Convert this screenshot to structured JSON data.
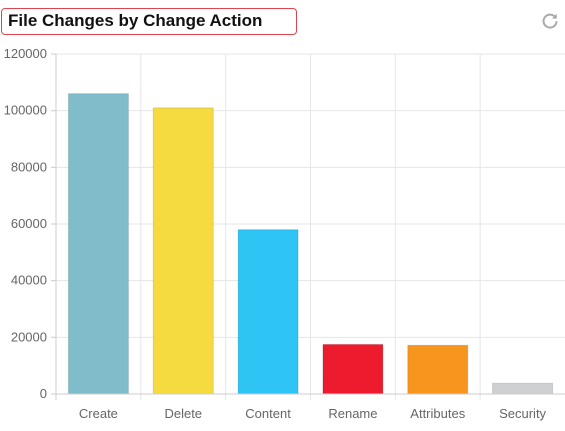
{
  "header": {
    "title": "File Changes by Change Action"
  },
  "icons": {
    "refresh": "refresh-icon"
  },
  "chart_data": {
    "type": "bar",
    "title": "File Changes by Change Action",
    "xlabel": "",
    "ylabel": "",
    "categories": [
      "Create",
      "Delete",
      "Content",
      "Rename",
      "Attributes",
      "Security"
    ],
    "values": [
      106000,
      101000,
      58000,
      17500,
      17200,
      3800
    ],
    "colors": [
      "#7fbdca",
      "#f5da40",
      "#2ec4f4",
      "#ec1c2e",
      "#f7961e",
      "#cfd0d2"
    ],
    "ylim": [
      0,
      120000
    ],
    "yticks": [
      "0",
      "20000",
      "40000",
      "60000",
      "80000",
      "100000",
      "120000"
    ],
    "grid": true
  }
}
